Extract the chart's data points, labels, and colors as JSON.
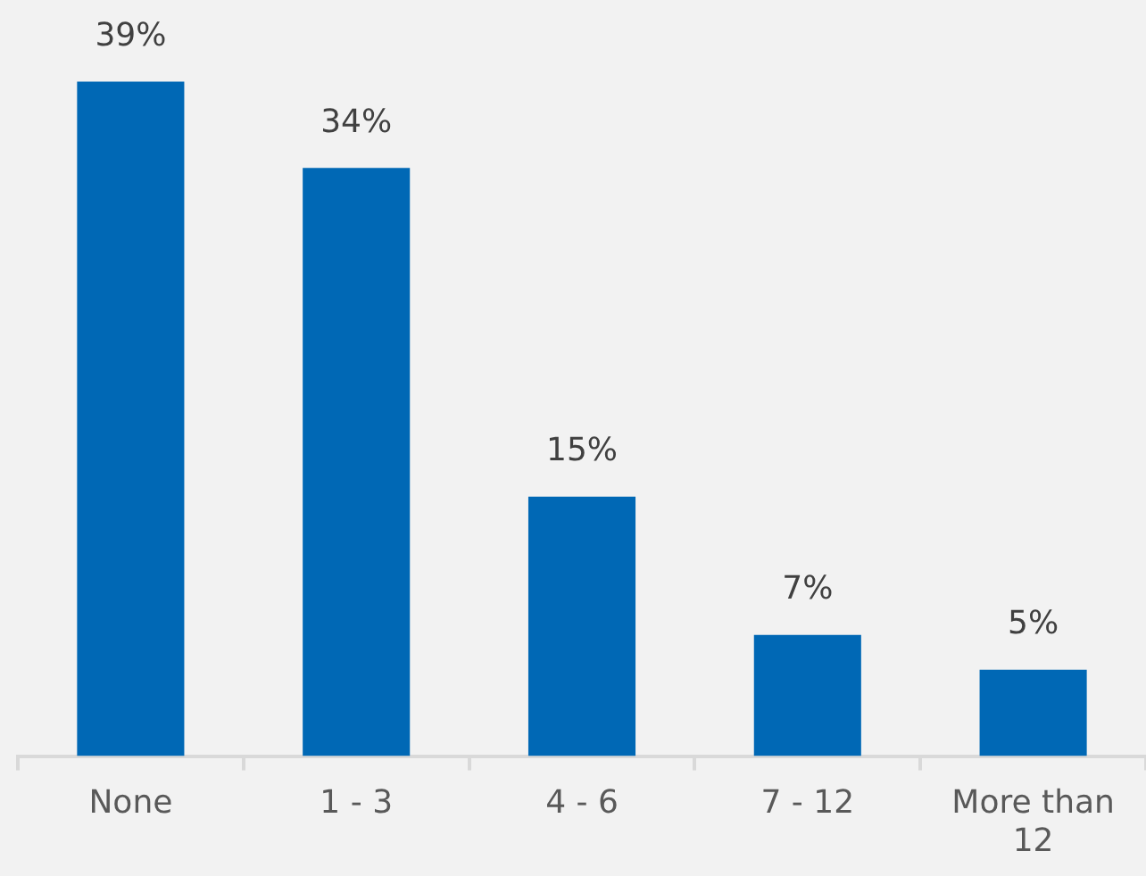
{
  "chart_data": {
    "type": "bar",
    "categories": [
      "None",
      "1 - 3",
      "4 - 6",
      "7 - 12",
      "More than 12"
    ],
    "values": [
      39,
      34,
      15,
      7,
      5
    ],
    "value_labels": [
      "39%",
      "34%",
      "15%",
      "7%",
      "5%"
    ],
    "color": "#0068b5"
  }
}
